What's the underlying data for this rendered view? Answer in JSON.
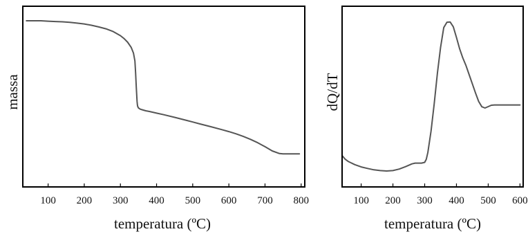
{
  "chart_data": [
    {
      "type": "line",
      "title": "",
      "xlabel": "temperatura (ºC)",
      "ylabel": "massa",
      "xlim": [
        30,
        810
      ],
      "ylim": [
        0,
        100
      ],
      "xticks": [
        100,
        200,
        300,
        400,
        500,
        600,
        700,
        800
      ],
      "grid": false,
      "legend": "none",
      "line_color": "#555555",
      "series": [
        {
          "x": [
            40,
            60,
            80,
            100,
            120,
            140,
            160,
            180,
            200,
            220,
            240,
            260,
            280,
            300,
            310,
            320,
            330,
            336,
            340,
            342,
            344,
            346,
            347,
            348,
            350,
            355,
            360,
            370,
            380,
            400,
            420,
            450,
            480,
            500,
            520,
            550,
            580,
            600,
            620,
            640,
            660,
            680,
            700,
            720,
            740,
            750,
            760,
            780,
            795
          ],
          "y": [
            100,
            100,
            100,
            99.7,
            99.5,
            99.3,
            98.9,
            98.4,
            97.8,
            96.9,
            95.8,
            94.5,
            92.6,
            89.8,
            87.8,
            85.3,
            81.7,
            77.9,
            72.5,
            64.5,
            54.5,
            45,
            42.5,
            41.3,
            40.3,
            39.5,
            39.1,
            38.4,
            37.9,
            36.8,
            35.7,
            33.9,
            32,
            30.7,
            29.4,
            27.5,
            25.5,
            24.1,
            22.6,
            20.8,
            18.8,
            16.5,
            13.8,
            10.9,
            9.1,
            8.9,
            8.9,
            8.9,
            8.9
          ]
        }
      ]
    },
    {
      "type": "line",
      "title": "",
      "xlabel": "temperatura (ºC)",
      "ylabel": "dQ/dT",
      "xlim": [
        40,
        610
      ],
      "ylim": [
        0,
        100
      ],
      "xticks": [
        100,
        200,
        300,
        400,
        500,
        600
      ],
      "grid": false,
      "legend": "none",
      "line_color": "#555555",
      "series": [
        {
          "x": [
            40,
            50,
            60,
            80,
            100,
            120,
            140,
            160,
            180,
            200,
            220,
            240,
            260,
            270,
            280,
            290,
            300,
            305,
            310,
            320,
            330,
            340,
            350,
            360,
            370,
            380,
            390,
            400,
            410,
            420,
            430,
            440,
            450,
            460,
            470,
            480,
            490,
            500,
            510,
            520,
            530,
            560,
            600
          ],
          "y": [
            12,
            9.5,
            8,
            6,
            4.5,
            3.5,
            2.6,
            2.1,
            1.8,
            2.1,
            3.1,
            4.7,
            6.5,
            7,
            7,
            7,
            7.5,
            9.5,
            14,
            28,
            46,
            66,
            83,
            96,
            99.5,
            99.7,
            96.5,
            89.5,
            82,
            76,
            71,
            65,
            59,
            53,
            47.5,
            44,
            43.2,
            44.1,
            45,
            45.2,
            45.2,
            45.2,
            45.2
          ]
        }
      ]
    }
  ]
}
